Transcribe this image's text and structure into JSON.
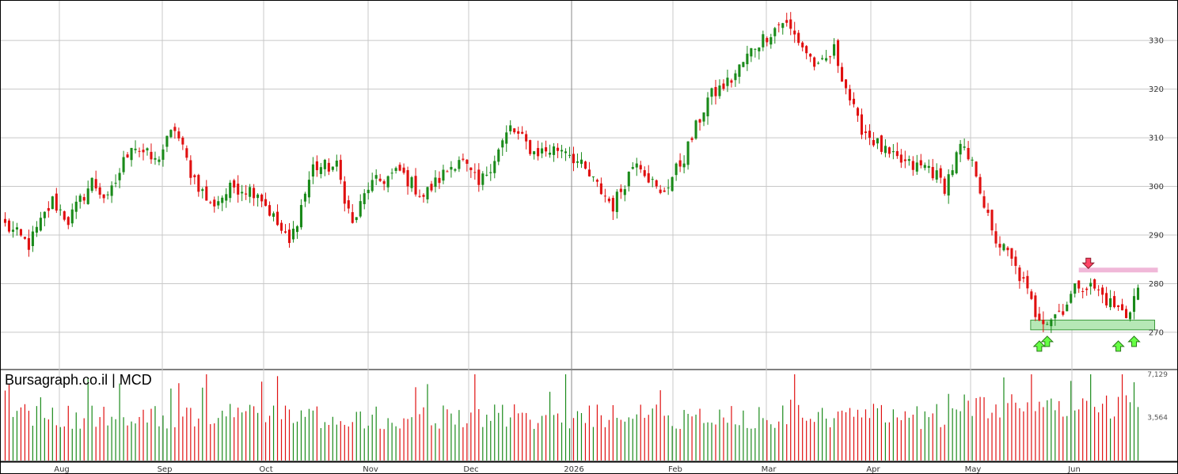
{
  "chart_data": {
    "type": "candlestick",
    "title": "Bursagraph.co.il | MCD",
    "grid": true,
    "price_axis": {
      "ticks": [
        "270",
        "280",
        "290",
        "300",
        "310",
        "320",
        "330"
      ],
      "range": [
        262.5,
        338
      ]
    },
    "volume_axis": {
      "ticks": [
        "3,564",
        "7,129"
      ],
      "range": [
        0,
        7129
      ]
    },
    "x_axis": {
      "labels": [
        "Aug",
        "Sep",
        "Oct",
        "Nov",
        "Dec",
        "2026",
        "Feb",
        "Mar",
        "Apr",
        "May",
        "Jun"
      ]
    },
    "colors": {
      "up": "#1a8a1a",
      "down": "#e01010",
      "grid": "#c8c8c8",
      "support_zone": "#b6e8b6",
      "resistance_line": "#f0b8d8",
      "up_arrow": "#66ff44",
      "down_arrow": "#ff4466"
    },
    "support_zone": [
      270.5,
      272.5
    ],
    "resistance_level": 282.8,
    "price_keypoints": [
      [
        0,
        292
      ],
      [
        6,
        288
      ],
      [
        12,
        297
      ],
      [
        16,
        293
      ],
      [
        22,
        301
      ],
      [
        26,
        297
      ],
      [
        32,
        309
      ],
      [
        38,
        305
      ],
      [
        43,
        312
      ],
      [
        47,
        303
      ],
      [
        52,
        296
      ],
      [
        58,
        300
      ],
      [
        64,
        299
      ],
      [
        72,
        288
      ],
      [
        78,
        304
      ],
      [
        84,
        304
      ],
      [
        88,
        292
      ],
      [
        92,
        300
      ],
      [
        100,
        303
      ],
      [
        106,
        298
      ],
      [
        115,
        306
      ],
      [
        120,
        300
      ],
      [
        128,
        312
      ],
      [
        134,
        307
      ],
      [
        142,
        308
      ],
      [
        150,
        300
      ],
      [
        154,
        296
      ],
      [
        160,
        306
      ],
      [
        166,
        298
      ],
      [
        172,
        306
      ],
      [
        178,
        318
      ],
      [
        184,
        322
      ],
      [
        190,
        329
      ],
      [
        197,
        334
      ],
      [
        201,
        330
      ],
      [
        206,
        324
      ],
      [
        210,
        328
      ],
      [
        216,
        313
      ],
      [
        224,
        306
      ],
      [
        230,
        304
      ],
      [
        234,
        304
      ],
      [
        238,
        300
      ],
      [
        242,
        308
      ],
      [
        246,
        303
      ],
      [
        250,
        290
      ],
      [
        254,
        286
      ],
      [
        258,
        280
      ],
      [
        261,
        274
      ],
      [
        264,
        272.5
      ],
      [
        268,
        275
      ],
      [
        272,
        280
      ],
      [
        276,
        279
      ],
      [
        280,
        276
      ],
      [
        284,
        273.5
      ],
      [
        287,
        279
      ]
    ],
    "candles_count": 288,
    "volume_max": 7129,
    "indicators": {
      "support_arrows_at": [
        262,
        264,
        282,
        286
      ],
      "resistance_arrow_at": 270
    }
  }
}
